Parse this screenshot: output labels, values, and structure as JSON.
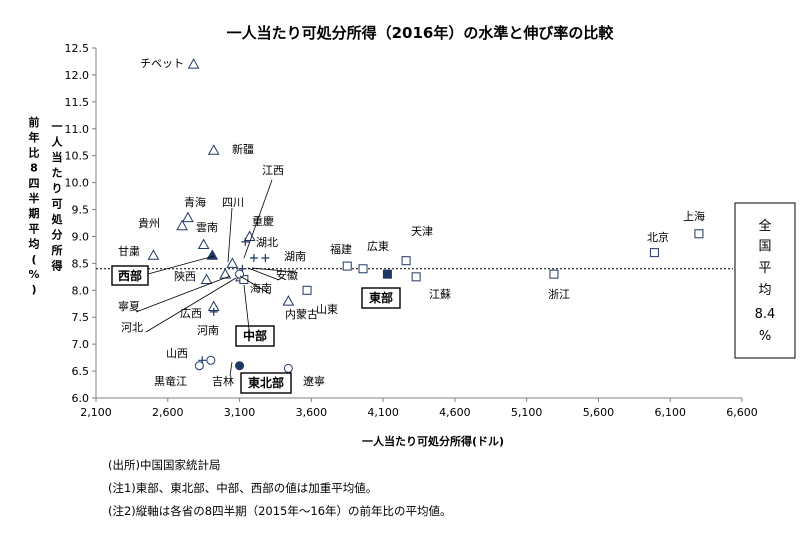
{
  "chart_data": {
    "type": "scatter",
    "title": "一人当たり可処分所得（2016年）の水準と伸び率の比較",
    "xlabel": "一人当たり可処分所得(ドル)",
    "ylabel": "前年比8四半期平均(%)",
    "ylabel2": "一人当たり可処分所得",
    "xlim": [
      2100,
      6600
    ],
    "ylim": [
      6.0,
      12.5
    ],
    "xticks": [
      2100,
      2600,
      3100,
      3600,
      4100,
      4600,
      5100,
      5600,
      6100,
      6600
    ],
    "xtick_labels": [
      "2,100",
      "2,600",
      "3,100",
      "3,600",
      "4,100",
      "4,600",
      "5,100",
      "5,600",
      "6,100",
      "6,600"
    ],
    "yticks": [
      6.0,
      6.5,
      7.0,
      7.5,
      8.0,
      8.5,
      9.0,
      9.5,
      10.0,
      10.5,
      11.0,
      11.5,
      12.0,
      12.5
    ],
    "ytick_labels": [
      "6.0",
      "6.5",
      "7.0",
      "7.5",
      "8.0",
      "8.5",
      "9.0",
      "9.5",
      "10.0",
      "10.5",
      "11.0",
      "11.5",
      "12.0",
      "12.5"
    ],
    "grid": false,
    "average_line": {
      "y": 8.4,
      "label_lines": [
        "全",
        "国",
        "平",
        "均",
        "8.4",
        "%"
      ]
    },
    "points": [
      {
        "name": "チベット",
        "x": 2780,
        "y": 12.2,
        "marker": "triangle"
      },
      {
        "name": "新疆",
        "x": 2920,
        "y": 10.6,
        "marker": "triangle"
      },
      {
        "name": "青海",
        "x": 2740,
        "y": 9.35,
        "marker": "triangle"
      },
      {
        "name": "貴州",
        "x": 2700,
        "y": 9.2,
        "marker": "triangle"
      },
      {
        "name": "雲南",
        "x": 2850,
        "y": 8.85,
        "marker": "triangle"
      },
      {
        "name": "四川",
        "x": 3050,
        "y": 8.5,
        "marker": "triangle"
      },
      {
        "name": "重慶",
        "x": 3170,
        "y": 9.0,
        "marker": "triangle"
      },
      {
        "name": "甘粛",
        "x": 2500,
        "y": 8.65,
        "marker": "triangle"
      },
      {
        "name": "陝西",
        "x": 2870,
        "y": 8.2,
        "marker": "triangle"
      },
      {
        "name": "寧夏",
        "x": 3000,
        "y": 8.3,
        "marker": "triangle"
      },
      {
        "name": "河北",
        "x": 3110,
        "y": 8.25,
        "marker": "triangle"
      },
      {
        "name": "広西",
        "x": 2920,
        "y": 7.7,
        "marker": "triangle"
      },
      {
        "name": "内蒙古",
        "x": 3440,
        "y": 7.8,
        "marker": "triangle"
      },
      {
        "name": "西部",
        "x": 2910,
        "y": 8.65,
        "marker": "triangle-filled"
      },
      {
        "name": "江西",
        "x": 3140,
        "y": 8.9,
        "marker": "plus"
      },
      {
        "name": "湖北",
        "x": 3280,
        "y": 8.6,
        "marker": "plus"
      },
      {
        "name": "湖南",
        "x": 3200,
        "y": 8.6,
        "marker": "plus"
      },
      {
        "name": "安徽",
        "x": 3120,
        "y": 8.4,
        "marker": "plus"
      },
      {
        "name": "河南",
        "x": 2920,
        "y": 7.6,
        "marker": "plus"
      },
      {
        "name": "山西",
        "x": 2840,
        "y": 6.7,
        "marker": "plus"
      },
      {
        "name": "海南",
        "x": 3130,
        "y": 8.2,
        "marker": "square"
      },
      {
        "name": "山東",
        "x": 3570,
        "y": 8.0,
        "marker": "square"
      },
      {
        "name": "福建",
        "x": 3850,
        "y": 8.45,
        "marker": "square"
      },
      {
        "name": "広東",
        "x": 3960,
        "y": 8.4,
        "marker": "square"
      },
      {
        "name": "天津",
        "x": 4260,
        "y": 8.55,
        "marker": "square"
      },
      {
        "name": "江蘇",
        "x": 4330,
        "y": 8.25,
        "marker": "square"
      },
      {
        "name": "浙江",
        "x": 5290,
        "y": 8.3,
        "marker": "square"
      },
      {
        "name": "北京",
        "x": 5990,
        "y": 8.7,
        "marker": "square"
      },
      {
        "name": "上海",
        "x": 6300,
        "y": 9.05,
        "marker": "square"
      },
      {
        "name": "東部",
        "x": 4130,
        "y": 8.3,
        "marker": "square-filled"
      },
      {
        "name": "中部",
        "x": 3100,
        "y": 8.3,
        "marker": "circle"
      },
      {
        "name": "黒竜江",
        "x": 2820,
        "y": 6.6,
        "marker": "circle"
      },
      {
        "name": "吉林",
        "x": 2900,
        "y": 6.7,
        "marker": "circle"
      },
      {
        "name": "遼寧",
        "x": 3440,
        "y": 6.55,
        "marker": "circle"
      },
      {
        "name": "東北部",
        "x": 3100,
        "y": 6.6,
        "marker": "circle-filled"
      }
    ]
  },
  "notes": [
    "(出所)中国国家統計局",
    "(注1)東部、東北部、中部、西部の値は加重平均値。",
    "(注2)縦軸は各省の8四半期（2015年～16年）の前年比の平均値。"
  ]
}
